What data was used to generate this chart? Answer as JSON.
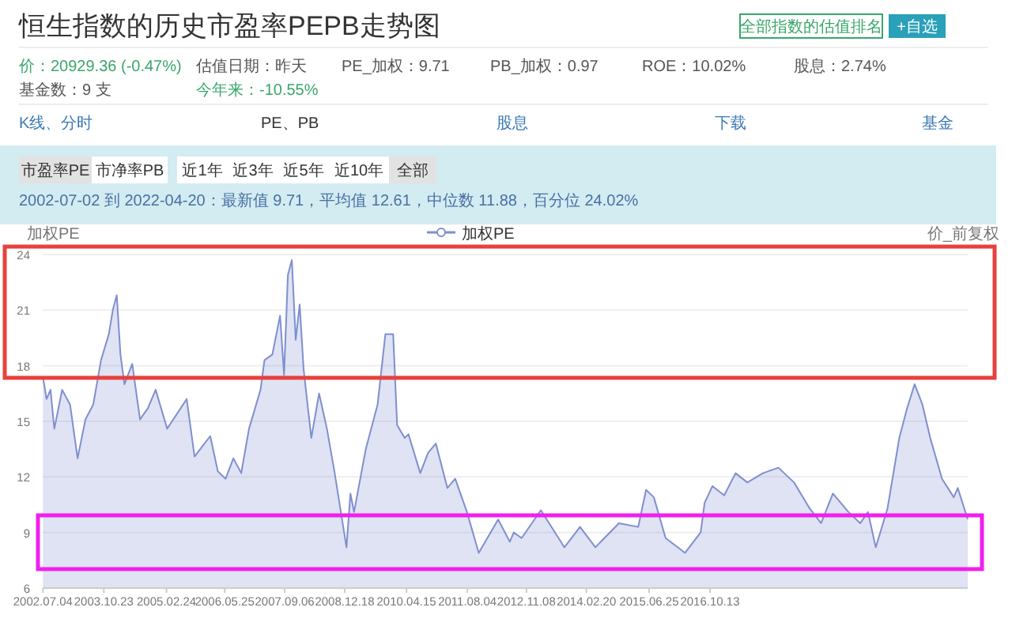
{
  "chart_data": {
    "type": "area",
    "title": "恒生指数的历史市盈率PEPB走势图",
    "subtitle": "2002-07-02 到 2022-04-20：最新值 9.71，平均值 12.61，中位数 11.88，百分位 24.02%",
    "ylabel": "加权PE",
    "y2label": "价_前复权",
    "annotations": [
      "全部指数的估值排名",
      "+自选",
      "价：20929.36 (-0.47%)",
      "估值日期：昨天",
      "PE_加权：9.71",
      "PB_加权：0.97",
      "ROE：10.02%",
      "股息：2.74%",
      "基金数：9 支",
      "今年来：-10.55%",
      "K线、分时",
      "PE、PB",
      "股息",
      "下载",
      "基金",
      "市盈率PE",
      "市净率PB",
      "近1年",
      "近3年",
      "近5年",
      "近10年",
      "全部"
    ],
    "x": [
      "2002-07-04",
      "2002-08",
      "2002-09",
      "2002-10",
      "2002-12",
      "2003-02",
      "2003-04",
      "2003-06",
      "2003-08",
      "2003-10",
      "2003-12",
      "2004-01",
      "2004-02",
      "2004-03",
      "2004-04",
      "2004-06",
      "2004-08",
      "2004-10",
      "2004-12",
      "2005-03",
      "2005-08",
      "2005-10",
      "2006-02",
      "2006-04",
      "2006-06",
      "2006-08",
      "2006-10",
      "2006-12",
      "2007-03",
      "2007-04",
      "2007-06",
      "2007-08",
      "2007-09",
      "2007-10",
      "2007-11",
      "2007-12",
      "2008-01",
      "2008-02",
      "2008-04",
      "2008-06",
      "2008-08",
      "2008-10",
      "2009-01",
      "2009-02",
      "2009-03",
      "2009-06",
      "2009-09",
      "2009-11",
      "2010-01",
      "2010-02",
      "2010-04",
      "2010-05",
      "2010-08",
      "2010-10",
      "2010-12",
      "2011-03",
      "2011-05",
      "2011-08",
      "2011-11",
      "2012-04",
      "2012-07",
      "2012-08",
      "2012-10",
      "2013-03",
      "2013-09",
      "2014-01",
      "2014-05",
      "2014-11",
      "2015-04",
      "2015-06",
      "2015-08",
      "2015-11",
      "2016-04",
      "2016-08",
      "2016-09",
      "2016-11",
      "2017-02",
      "2017-05",
      "2017-08",
      "2017-12",
      "2018-04",
      "2018-08",
      "2018-12",
      "2019-03",
      "2019-06",
      "2019-10",
      "2020-01",
      "2020-03",
      "2020-05",
      "2020-08",
      "2020-11",
      "2021-01",
      "2021-03",
      "2021-05",
      "2021-07",
      "2021-10",
      "2022-01",
      "2022-02",
      "2022-04-20"
    ],
    "series": [
      {
        "name": "加权PE",
        "color": "#7f8fcf",
        "values": [
          17.4,
          16.2,
          16.7,
          14.6,
          16.7,
          15.9,
          13.0,
          15.1,
          15.9,
          18.3,
          19.7,
          21.0,
          21.8,
          18.6,
          17.0,
          18.1,
          15.1,
          15.7,
          16.7,
          14.6,
          16.2,
          13.1,
          14.2,
          12.3,
          11.9,
          13.0,
          12.2,
          14.6,
          16.7,
          18.3,
          18.6,
          20.7,
          17.5,
          22.9,
          23.7,
          19.4,
          21.3,
          17.8,
          14.1,
          16.5,
          14.6,
          12.2,
          8.2,
          11.1,
          10.1,
          13.5,
          15.9,
          19.7,
          19.7,
          14.8,
          14.1,
          14.3,
          12.2,
          13.3,
          13.8,
          11.4,
          11.9,
          10.1,
          7.9,
          9.7,
          8.5,
          9.0,
          8.7,
          10.2,
          8.2,
          9.3,
          8.2,
          9.5,
          9.3,
          11.3,
          10.9,
          8.7,
          7.9,
          9.0,
          10.6,
          11.5,
          11.0,
          12.2,
          11.7,
          12.2,
          12.5,
          11.7,
          10.3,
          9.5,
          11.1,
          10.1,
          9.5,
          10.1,
          8.2,
          10.3,
          14.1,
          15.7,
          17.0,
          15.9,
          14.1,
          11.9,
          10.9,
          11.4,
          9.71
        ]
      }
    ],
    "ylim": [
      6,
      24
    ],
    "yticks": [
      6,
      9,
      12,
      15,
      18,
      21,
      24
    ],
    "xlim": [
      "2002-07-02",
      "2022-04-20"
    ],
    "xticks": [
      {
        "value": "2002-07-04",
        "label": "2002.07.04"
      },
      {
        "value": "2003-10-23",
        "label": "2003.10.23"
      },
      {
        "value": "2005-02-24",
        "label": "2005.02.24"
      },
      {
        "value": "2006-05-25",
        "label": "2006.05.25"
      },
      {
        "value": "2007-09-06",
        "label": "2007.09.06"
      },
      {
        "value": "2008-12-18",
        "label": "2008.12.18"
      },
      {
        "value": "2010-04-15",
        "label": "2010.04.15"
      },
      {
        "value": "2011-08-04",
        "label": "2011.08.04"
      },
      {
        "value": "2012-11-08",
        "label": "2012.11.08"
      },
      {
        "value": "2014-02-20",
        "label": "2014.02.20"
      },
      {
        "value": "2015-06-25",
        "label": "2015.06.25"
      },
      {
        "value": "2016-10-13",
        "label": "2016.10.13"
      }
    ],
    "grid": "y",
    "legend": "top"
  }
}
